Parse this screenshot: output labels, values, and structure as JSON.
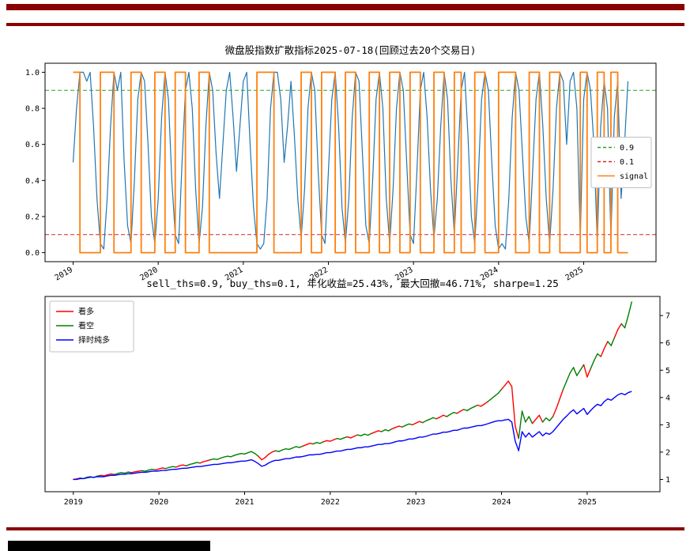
{
  "page": {
    "rule_color": "#8b0000",
    "footer_block_color": "#000000",
    "background": "#ffffff"
  },
  "chart_data": [
    {
      "type": "line",
      "title": "微盘股指数扩散指标2025-07-18(回顾过去20个交易日)",
      "xlabel": "",
      "ylabel": "",
      "xlim": [
        2018.67,
        2025.85
      ],
      "ylim": [
        -0.05,
        1.05
      ],
      "grid": false,
      "yaxis_side": "left",
      "yticks": [
        0.0,
        0.2,
        0.4,
        0.6,
        0.8,
        1.0
      ],
      "ytick_labels": [
        "0.0",
        "0.2",
        "0.4",
        "0.6",
        "0.8",
        "1.0"
      ],
      "xticks": [
        2019,
        2020,
        2021,
        2022,
        2023,
        2024,
        2025
      ],
      "xtick_labels": [
        "2019",
        "2020",
        "2021",
        "2022",
        "2023",
        "2024",
        "2025"
      ],
      "xtick_rotation": -30,
      "hlines": [
        {
          "y": 0.9,
          "color": "#2ca02c",
          "dashed": true,
          "label": "0.9"
        },
        {
          "y": 0.1,
          "color": "#d62728",
          "dashed": true,
          "label": "0.1"
        }
      ],
      "legend": {
        "position": "center-right",
        "entries": [
          {
            "label": "0.9",
            "color": "#2ca02c",
            "dashed": true
          },
          {
            "label": "0.1",
            "color": "#d62728",
            "dashed": true
          },
          {
            "label": "signal",
            "color": "#ff7f0e",
            "dashed": false
          }
        ]
      },
      "series": [
        {
          "name": "diffusion-indicator",
          "color": "#1f77b4",
          "width": 1.2,
          "x0": 2019.0,
          "dx": 0.04,
          "y": [
            0.5,
            0.8,
            1.0,
            1.0,
            0.95,
            1.0,
            0.7,
            0.3,
            0.05,
            0.02,
            0.3,
            0.7,
            1.0,
            0.9,
            1.0,
            0.5,
            0.15,
            0.05,
            0.4,
            0.85,
            1.0,
            0.95,
            0.6,
            0.2,
            0.05,
            0.3,
            0.75,
            1.0,
            0.85,
            0.4,
            0.1,
            0.05,
            0.5,
            0.9,
            1.0,
            0.8,
            0.35,
            0.05,
            0.25,
            0.7,
            1.0,
            0.9,
            0.55,
            0.3,
            0.6,
            0.9,
            1.0,
            0.75,
            0.45,
            0.7,
            0.95,
            1.0,
            0.6,
            0.25,
            0.05,
            0.02,
            0.05,
            0.3,
            0.8,
            1.0,
            1.0,
            0.85,
            0.5,
            0.7,
            0.95,
            0.65,
            0.3,
            0.08,
            0.35,
            0.8,
            1.0,
            0.9,
            0.45,
            0.1,
            0.05,
            0.45,
            0.85,
            1.0,
            0.7,
            0.25,
            0.05,
            0.3,
            0.75,
            1.0,
            0.95,
            0.55,
            0.15,
            0.05,
            0.4,
            0.85,
            1.0,
            0.8,
            0.3,
            0.05,
            0.35,
            0.8,
            1.0,
            0.9,
            0.5,
            0.1,
            0.05,
            0.45,
            0.9,
            1.0,
            0.75,
            0.35,
            0.08,
            0.3,
            0.7,
            1.0,
            0.85,
            0.4,
            0.1,
            0.5,
            0.9,
            1.0,
            0.65,
            0.2,
            0.05,
            0.4,
            0.85,
            1.0,
            0.9,
            0.5,
            0.15,
            0.02,
            0.05,
            0.02,
            0.3,
            0.75,
            1.0,
            0.9,
            0.55,
            0.2,
            0.05,
            0.45,
            0.85,
            1.0,
            0.7,
            0.3,
            0.05,
            0.35,
            0.8,
            1.0,
            0.95,
            0.6,
            0.95,
            1.0,
            0.8,
            0.08,
            0.85,
            1.0,
            0.9,
            0.6,
            0.05,
            0.7,
            0.95,
            0.8,
            0.08,
            0.75,
            0.95,
            0.3,
            0.6,
            0.95
          ]
        },
        {
          "name": "signal",
          "color": "#ff7f0e",
          "width": 1.8,
          "step": true,
          "x0": 2019.0,
          "dx": 0.04,
          "y": [
            1,
            1,
            0,
            0,
            0,
            0,
            0,
            0,
            1,
            1,
            1,
            1,
            0,
            0,
            0,
            0,
            0,
            1,
            1,
            1,
            0,
            0,
            0,
            0,
            1,
            1,
            1,
            0,
            0,
            0,
            1,
            1,
            1,
            0,
            0,
            0,
            0,
            1,
            1,
            1,
            0,
            0,
            0,
            0,
            0,
            0,
            0,
            0,
            0,
            0,
            0,
            0,
            0,
            0,
            1,
            1,
            1,
            1,
            1,
            0,
            0,
            0,
            0,
            0,
            0,
            0,
            0,
            1,
            1,
            1,
            0,
            0,
            0,
            1,
            1,
            1,
            1,
            0,
            0,
            0,
            1,
            1,
            1,
            0,
            0,
            0,
            0,
            1,
            1,
            1,
            0,
            0,
            0,
            1,
            1,
            1,
            0,
            0,
            0,
            1,
            1,
            1,
            0,
            0,
            0,
            0,
            1,
            1,
            1,
            0,
            0,
            0,
            1,
            1,
            0,
            0,
            0,
            0,
            1,
            1,
            1,
            0,
            0,
            0,
            0,
            1,
            1,
            1,
            1,
            1,
            0,
            0,
            0,
            0,
            1,
            1,
            1,
            0,
            0,
            0,
            1,
            1,
            1,
            0,
            0,
            0,
            0,
            0,
            0,
            1,
            1,
            0,
            0,
            0,
            1,
            1,
            0,
            0,
            1,
            1,
            0,
            0,
            0,
            0
          ]
        }
      ]
    },
    {
      "type": "line",
      "title": "sell_ths=0.9, buy_ths=0.1, 年化收益=25.43%, 最大回撤=46.71%, sharpe=1.25",
      "xlabel": "",
      "ylabel": "",
      "xlim": [
        2018.67,
        2025.85
      ],
      "ylim": [
        0.55,
        7.7
      ],
      "grid": false,
      "yaxis_side": "right",
      "yticks": [
        1,
        2,
        3,
        4,
        5,
        6,
        7
      ],
      "ytick_labels": [
        "1",
        "2",
        "3",
        "4",
        "5",
        "6",
        "7"
      ],
      "xticks": [
        2019,
        2020,
        2021,
        2022,
        2023,
        2024,
        2025
      ],
      "xtick_labels": [
        "2019",
        "2020",
        "2021",
        "2022",
        "2023",
        "2024",
        "2025"
      ],
      "xtick_rotation": 0,
      "hlines": [],
      "legend": {
        "position": "upper-left",
        "entries": [
          {
            "label": "看多",
            "color": "#ff0000",
            "dashed": false
          },
          {
            "label": "看空",
            "color": "#008000",
            "dashed": false
          },
          {
            "label": "择时纯多",
            "color": "#0000ff",
            "dashed": false
          }
        ]
      },
      "series": [
        {
          "name": "long-short-equity",
          "width": 1.4,
          "x0": 2019.0,
          "dx": 0.04,
          "colors": {
            "1": "#ff0000",
            "0": "#008000"
          },
          "mask": [
            1,
            1,
            0,
            0,
            0,
            0,
            0,
            0,
            1,
            1,
            1,
            1,
            0,
            0,
            0,
            0,
            0,
            1,
            1,
            1,
            0,
            0,
            0,
            0,
            1,
            1,
            1,
            0,
            0,
            0,
            1,
            1,
            1,
            0,
            0,
            0,
            0,
            1,
            1,
            1,
            0,
            0,
            0,
            0,
            0,
            0,
            0,
            0,
            0,
            0,
            0,
            0,
            0,
            0,
            1,
            1,
            1,
            1,
            1,
            0,
            0,
            0,
            0,
            0,
            0,
            0,
            0,
            1,
            1,
            1,
            0,
            0,
            0,
            1,
            1,
            1,
            1,
            0,
            0,
            0,
            1,
            1,
            1,
            0,
            0,
            0,
            0,
            1,
            1,
            1,
            0,
            0,
            0,
            1,
            1,
            1,
            0,
            0,
            0,
            1,
            1,
            1,
            0,
            0,
            0,
            0,
            1,
            1,
            1,
            0,
            0,
            0,
            1,
            1,
            0,
            0,
            0,
            0,
            1,
            1,
            1,
            0,
            0,
            0,
            0,
            1,
            1,
            1,
            1,
            1,
            0,
            0,
            0,
            0,
            1,
            1,
            1,
            0,
            0,
            0,
            1,
            1,
            1,
            0,
            0,
            0,
            0,
            0,
            0,
            1,
            1,
            0,
            0,
            0,
            1,
            1,
            0,
            0,
            1,
            1,
            0,
            0,
            0,
            0
          ],
          "y": [
            1.0,
            1.02,
            1.05,
            1.03,
            1.08,
            1.1,
            1.07,
            1.12,
            1.15,
            1.13,
            1.17,
            1.2,
            1.18,
            1.22,
            1.25,
            1.23,
            1.27,
            1.25,
            1.28,
            1.3,
            1.32,
            1.3,
            1.34,
            1.37,
            1.35,
            1.38,
            1.42,
            1.4,
            1.44,
            1.47,
            1.45,
            1.5,
            1.53,
            1.5,
            1.55,
            1.58,
            1.62,
            1.6,
            1.65,
            1.68,
            1.72,
            1.75,
            1.73,
            1.78,
            1.82,
            1.85,
            1.83,
            1.88,
            1.92,
            1.95,
            1.93,
            1.98,
            2.02,
            1.95,
            1.85,
            1.72,
            1.8,
            1.92,
            2.0,
            2.05,
            2.02,
            2.08,
            2.12,
            2.1,
            2.15,
            2.2,
            2.17,
            2.22,
            2.27,
            2.32,
            2.3,
            2.35,
            2.32,
            2.38,
            2.42,
            2.4,
            2.45,
            2.5,
            2.47,
            2.52,
            2.56,
            2.52,
            2.58,
            2.63,
            2.6,
            2.66,
            2.62,
            2.68,
            2.73,
            2.78,
            2.75,
            2.82,
            2.78,
            2.85,
            2.9,
            2.95,
            2.92,
            2.98,
            3.03,
            3.0,
            3.06,
            3.12,
            3.08,
            3.15,
            3.2,
            3.26,
            3.22,
            3.28,
            3.35,
            3.3,
            3.38,
            3.45,
            3.42,
            3.5,
            3.56,
            3.52,
            3.6,
            3.66,
            3.72,
            3.68,
            3.76,
            3.85,
            3.95,
            4.05,
            4.15,
            4.3,
            4.45,
            4.6,
            4.4,
            2.95,
            2.5,
            3.5,
            3.1,
            3.3,
            3.05,
            3.2,
            3.35,
            3.1,
            3.25,
            3.15,
            3.3,
            3.6,
            3.95,
            4.3,
            4.6,
            4.9,
            5.1,
            4.8,
            5.0,
            5.2,
            4.75,
            5.05,
            5.35,
            5.6,
            5.5,
            5.8,
            6.05,
            5.9,
            6.2,
            6.5,
            6.7,
            6.55,
            7.0,
            7.5
          ]
        },
        {
          "name": "timing-long-only",
          "color": "#0000ff",
          "width": 1.4,
          "x0": 2019.0,
          "dx": 0.04,
          "y": [
            1.0,
            1.0,
            1.03,
            1.03,
            1.06,
            1.08,
            1.08,
            1.1,
            1.1,
            1.1,
            1.13,
            1.15,
            1.15,
            1.17,
            1.19,
            1.19,
            1.21,
            1.21,
            1.23,
            1.25,
            1.26,
            1.26,
            1.28,
            1.3,
            1.3,
            1.31,
            1.33,
            1.33,
            1.35,
            1.37,
            1.37,
            1.39,
            1.41,
            1.41,
            1.43,
            1.45,
            1.47,
            1.47,
            1.49,
            1.51,
            1.53,
            1.55,
            1.55,
            1.57,
            1.59,
            1.61,
            1.61,
            1.63,
            1.65,
            1.67,
            1.67,
            1.69,
            1.72,
            1.66,
            1.58,
            1.48,
            1.52,
            1.6,
            1.66,
            1.7,
            1.7,
            1.73,
            1.76,
            1.76,
            1.79,
            1.82,
            1.82,
            1.84,
            1.87,
            1.9,
            1.9,
            1.92,
            1.92,
            1.95,
            1.98,
            1.98,
            2.01,
            2.04,
            2.04,
            2.07,
            2.1,
            2.1,
            2.13,
            2.16,
            2.16,
            2.19,
            2.19,
            2.22,
            2.25,
            2.28,
            2.28,
            2.31,
            2.31,
            2.34,
            2.38,
            2.41,
            2.41,
            2.44,
            2.48,
            2.48,
            2.51,
            2.55,
            2.55,
            2.58,
            2.62,
            2.66,
            2.66,
            2.69,
            2.73,
            2.73,
            2.76,
            2.8,
            2.8,
            2.84,
            2.88,
            2.88,
            2.91,
            2.94,
            2.97,
            2.97,
            3.0,
            3.04,
            3.08,
            3.12,
            3.15,
            3.15,
            3.18,
            3.2,
            3.1,
            2.4,
            2.05,
            2.75,
            2.55,
            2.7,
            2.55,
            2.65,
            2.75,
            2.6,
            2.7,
            2.65,
            2.75,
            2.9,
            3.05,
            3.2,
            3.32,
            3.45,
            3.55,
            3.4,
            3.5,
            3.6,
            3.38,
            3.52,
            3.65,
            3.75,
            3.7,
            3.85,
            3.95,
            3.9,
            4.0,
            4.1,
            4.15,
            4.1,
            4.18,
            4.22
          ]
        }
      ]
    }
  ]
}
